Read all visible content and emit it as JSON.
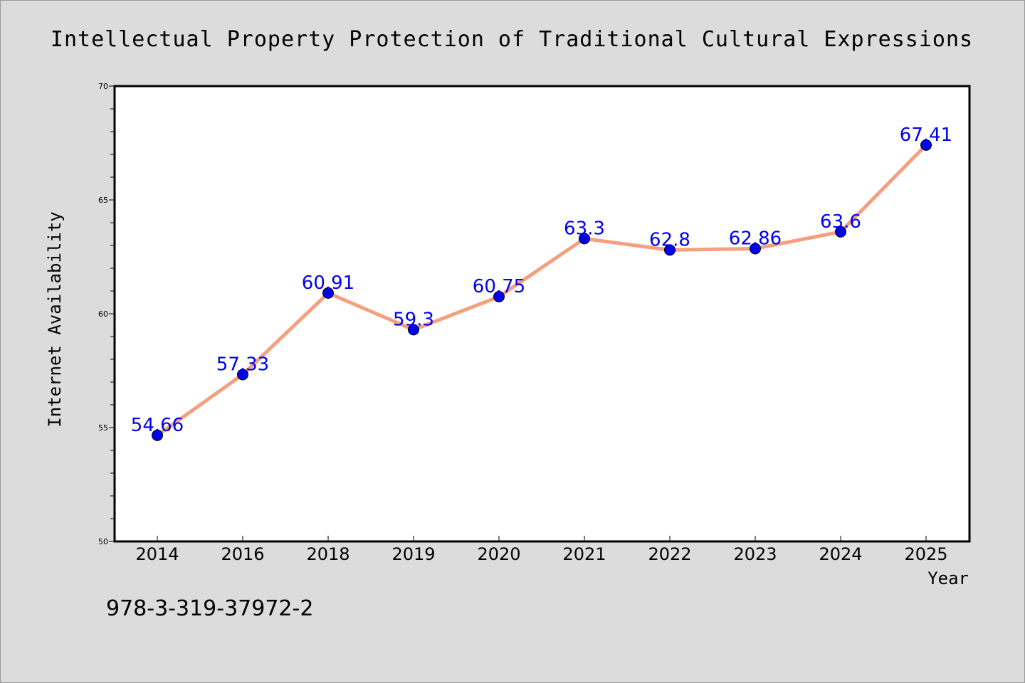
{
  "chart_data": {
    "type": "line",
    "title": "Intellectual Property Protection of Traditional Cultural Expressions",
    "xlabel": "Year",
    "ylabel": "Internet Availability",
    "categories": [
      "2014",
      "2016",
      "2018",
      "2019",
      "2020",
      "2021",
      "2022",
      "2023",
      "2024",
      "2025"
    ],
    "series": [
      {
        "values": [
          54.66,
          57.33,
          60.91,
          59.3,
          60.75,
          63.3,
          62.8,
          62.86,
          63.6,
          67.41
        ],
        "labels": [
          "54.66",
          "57.33",
          "60.91",
          "59.3",
          "60.75",
          "63.3",
          "62.8",
          "62.86",
          "63.6",
          "67.41"
        ],
        "line_color": "#f4a07f",
        "marker_color": "#0000ee"
      }
    ],
    "ylim": [
      50,
      70
    ],
    "yticks": [
      "50",
      "55",
      "60",
      "65",
      "70"
    ],
    "grid": false,
    "legend": "none"
  },
  "footer": {
    "isbn": "978-3-319-37972-2"
  },
  "colors": {
    "background": "#dcdcdc",
    "plot_area": "#ffffff",
    "line": "#f4a07f",
    "marker": "#0000ee",
    "data_label": "#0000ee"
  }
}
